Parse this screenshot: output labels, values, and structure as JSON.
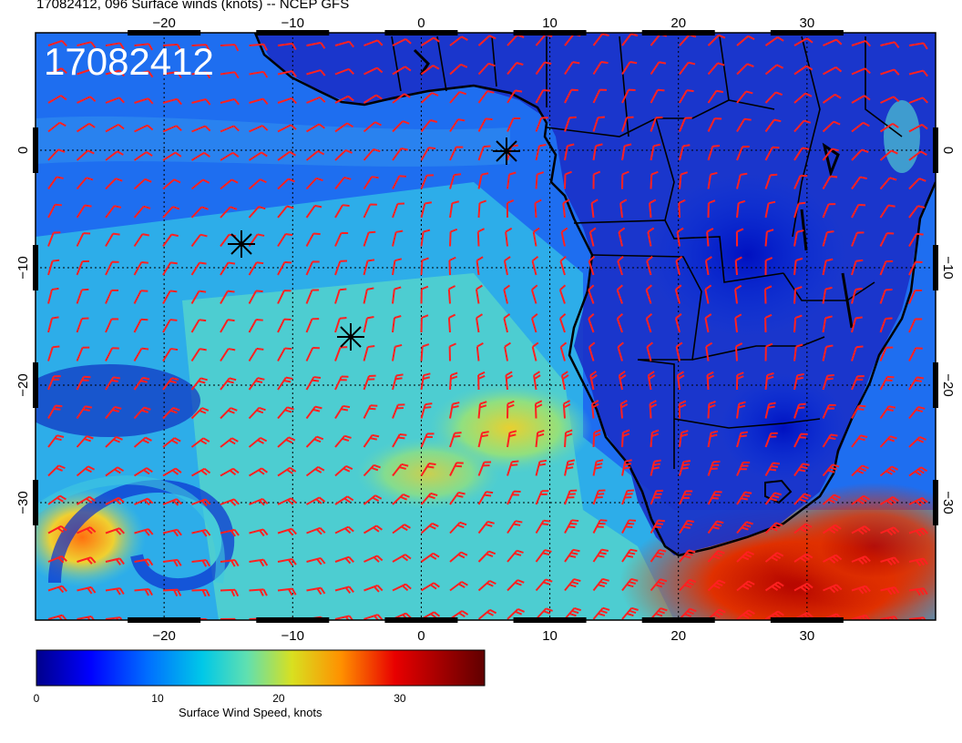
{
  "title": "17082412, 096 Surface winds (knots) -- NCEP GFS",
  "stamp": "17082412",
  "colorbar": {
    "label": "Surface Wind Speed, knots",
    "ticks": [
      "0",
      "10",
      "20",
      "30"
    ],
    "range": [
      0,
      37
    ],
    "colormap": [
      "#00008b",
      "#0000ff",
      "#0080ff",
      "#00c8e0",
      "#7fe0a0",
      "#e0e020",
      "#ff8000",
      "#e00000",
      "#700000"
    ]
  },
  "axes": {
    "lon_labels": [
      "−20",
      "−10",
      "0",
      "10",
      "20",
      "30"
    ],
    "lat_labels": [
      "0",
      "−10",
      "−20",
      "−30"
    ],
    "lon_range": [
      -30,
      40
    ],
    "lat_range": [
      -40,
      10
    ]
  },
  "colors": {
    "barbs": "#ff2020",
    "coast": "#000000",
    "grid": "#000000"
  },
  "markers": [
    "star-icon",
    "star-icon",
    "star-icon"
  ]
}
